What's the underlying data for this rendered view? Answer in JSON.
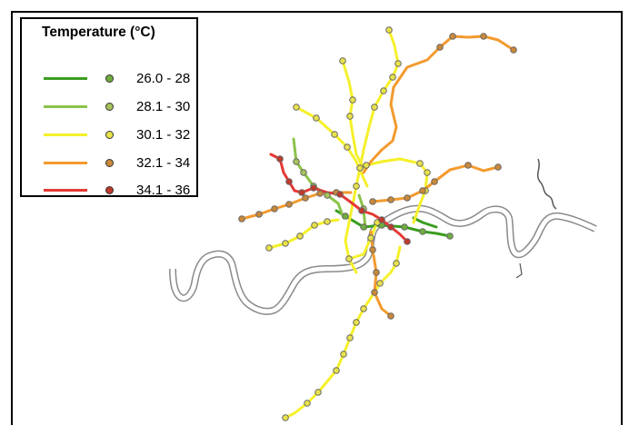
{
  "legend": {
    "title": "Temperature (°C)",
    "items": [
      {
        "label": "26.0 - 28",
        "color": "#3a9d1f",
        "dot": "#6fae3e"
      },
      {
        "label": "28.1 - 30",
        "color": "#8bc34a",
        "dot": "#a6c25a"
      },
      {
        "label": "30.1 - 32",
        "color": "#f5f02a",
        "dot": "#e8e24a"
      },
      {
        "label": "32.1 - 34",
        "color": "#f39a2e",
        "dot": "#c9883a"
      },
      {
        "label": "34.1 - 36",
        "color": "#e53935",
        "dot": "#c0392b"
      }
    ]
  }
}
